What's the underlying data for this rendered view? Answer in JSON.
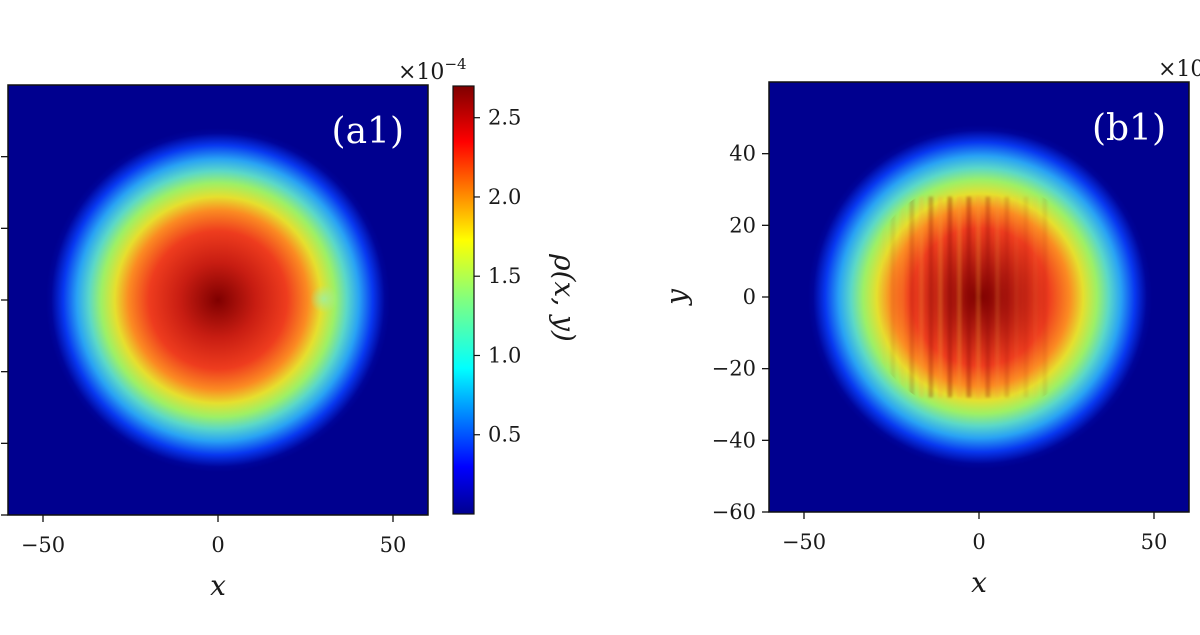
{
  "chart_data": [
    {
      "type": "heatmap",
      "panel_label": "(a1)",
      "xlabel": "x",
      "ylabel": "",
      "xlim": [
        -60,
        60
      ],
      "ylim": [
        -60,
        60
      ],
      "xticks": [
        -50,
        0,
        50
      ],
      "xtick_labels": [
        "−50",
        "0",
        "50"
      ],
      "yticks": [
        -60,
        -40,
        -20,
        0,
        20,
        40
      ],
      "colormap": "jet",
      "colorbar": {
        "label": "ρ(x, y)",
        "multiplier": "×10",
        "multiplier_exponent": "−4",
        "range": [
          0,
          2.7
        ],
        "ticks": [
          0.5,
          1.0,
          1.5,
          2.0,
          2.5
        ],
        "tick_labels": [
          "0.5",
          "1.0",
          "1.5",
          "2.0",
          "2.5"
        ]
      },
      "distribution": {
        "shape": "radial disk",
        "center": [
          0,
          0
        ],
        "peak_value": 2.7,
        "outer_radius": 48,
        "small_bump": {
          "x": 30,
          "y": 0,
          "value": 1.2
        }
      }
    },
    {
      "type": "heatmap",
      "panel_label": "(b1)",
      "xlabel": "x",
      "ylabel": "y",
      "xlim": [
        -60,
        60
      ],
      "ylim": [
        -60,
        60
      ],
      "xticks": [
        -50,
        0,
        50
      ],
      "xtick_labels": [
        "−50",
        "0",
        "50"
      ],
      "yticks": [
        -60,
        -40,
        -20,
        0,
        20,
        40
      ],
      "ytick_labels": [
        "−60",
        "−40",
        "−20",
        "0",
        "20",
        "40"
      ],
      "colormap": "jet",
      "colorbar_multiplier": "×10",
      "distribution": {
        "shape": "radial disk with vertical stripes",
        "center": [
          0,
          0
        ],
        "peak_value": 2.7,
        "outer_radius": 48,
        "stripe_region": {
          "x_range": [
            -28,
            20
          ],
          "y_range": [
            -28,
            28
          ]
        }
      }
    }
  ]
}
